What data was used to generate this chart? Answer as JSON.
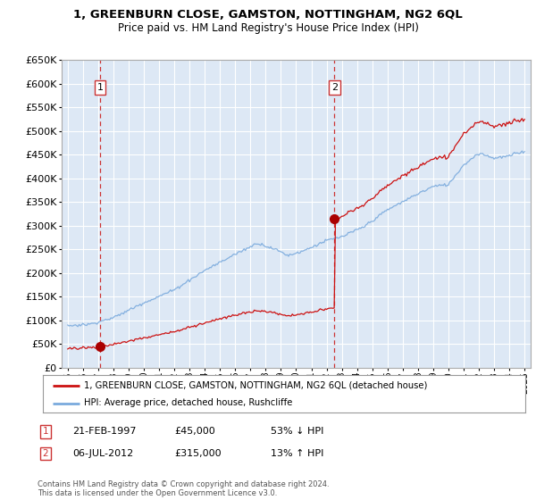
{
  "title": "1, GREENBURN CLOSE, GAMSTON, NOTTINGHAM, NG2 6QL",
  "subtitle": "Price paid vs. HM Land Registry's House Price Index (HPI)",
  "legend_line1": "1, GREENBURN CLOSE, GAMSTON, NOTTINGHAM, NG2 6QL (detached house)",
  "legend_line2": "HPI: Average price, detached house, Rushcliffe",
  "annotation1_date": "21-FEB-1997",
  "annotation1_price": "£45,000",
  "annotation1_pct": "53% ↓ HPI",
  "annotation2_date": "06-JUL-2012",
  "annotation2_price": "£315,000",
  "annotation2_pct": "13% ↑ HPI",
  "footer": "Contains HM Land Registry data © Crown copyright and database right 2024.\nThis data is licensed under the Open Government Licence v3.0.",
  "sale1_x": 1997.13,
  "sale1_y": 45000,
  "sale2_x": 2012.51,
  "sale2_y": 315000,
  "hpi_color": "#7aaadd",
  "property_color": "#cc1111",
  "sale_marker_color": "#aa0000",
  "dashed_line_color": "#cc3333",
  "plot_bg_color": "#dde8f5",
  "grid_color": "#ffffff",
  "ylim": [
    0,
    650000
  ],
  "xlim": [
    1994.6,
    2025.4
  ],
  "yticks": [
    0,
    50000,
    100000,
    150000,
    200000,
    250000,
    300000,
    350000,
    400000,
    450000,
    500000,
    550000,
    600000,
    650000
  ],
  "xticks": [
    1995,
    1996,
    1997,
    1998,
    1999,
    2000,
    2001,
    2002,
    2003,
    2004,
    2005,
    2006,
    2007,
    2008,
    2009,
    2010,
    2011,
    2012,
    2013,
    2014,
    2015,
    2016,
    2017,
    2018,
    2019,
    2020,
    2021,
    2022,
    2023,
    2024,
    2025
  ]
}
